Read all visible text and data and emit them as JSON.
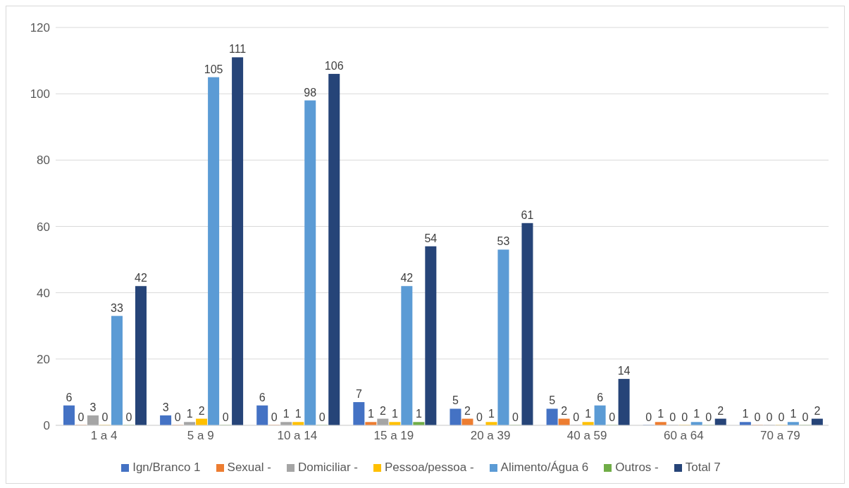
{
  "chart_data": {
    "type": "bar",
    "categories": [
      "1 a 4",
      "5 a 9",
      "10 a 14",
      "15 a 19",
      "20 a 39",
      "40 a 59",
      "60 a 64",
      "70 a 79"
    ],
    "series": [
      {
        "name": "Ign/Branco 1",
        "color": "#4472c4",
        "values": [
          6,
          3,
          6,
          7,
          5,
          5,
          0,
          1
        ]
      },
      {
        "name": "Sexual -",
        "color": "#ed7d31",
        "values": [
          0,
          0,
          0,
          1,
          2,
          2,
          1,
          0
        ]
      },
      {
        "name": "Domiciliar -",
        "color": "#a5a5a5",
        "values": [
          3,
          1,
          1,
          2,
          0,
          0,
          0,
          0
        ]
      },
      {
        "name": "Pessoa/pessoa -",
        "color": "#ffc000",
        "values": [
          0,
          2,
          1,
          1,
          1,
          1,
          0,
          0
        ]
      },
      {
        "name": "Alimento/Água 6",
        "color": "#5b9bd5",
        "values": [
          33,
          105,
          98,
          42,
          53,
          6,
          1,
          1
        ]
      },
      {
        "name": "Outros -",
        "color": "#70ad47",
        "values": [
          0,
          0,
          0,
          1,
          0,
          0,
          0,
          0
        ]
      },
      {
        "name": "Total 7",
        "color": "#264478",
        "values": [
          42,
          111,
          106,
          54,
          61,
          14,
          2,
          2
        ]
      }
    ],
    "ylim": [
      0,
      120
    ],
    "yticks": [
      0,
      20,
      40,
      60,
      80,
      100,
      120
    ],
    "grid": "y",
    "legend": "bottom",
    "data_labels": true
  }
}
